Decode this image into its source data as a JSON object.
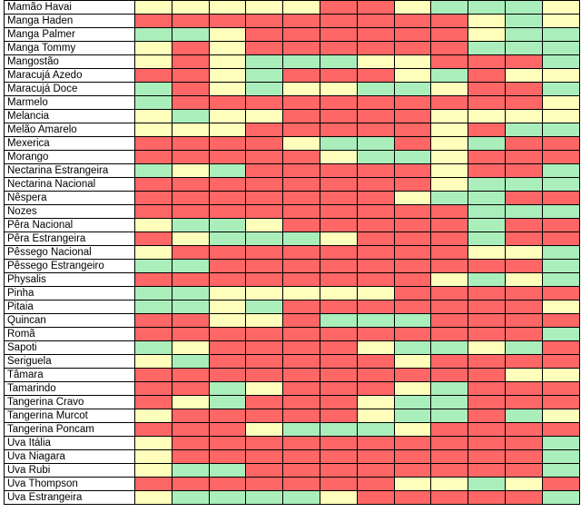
{
  "colors": {
    "R": "#ff6666",
    "G": "#aaeebb",
    "Y": "#ffffbb"
  },
  "rows": [
    {
      "name": "Mamão Havai",
      "cells": "YYYYYRRYGGGY"
    },
    {
      "name": "Manga Haden",
      "cells": "RRRRRRRRRYGY"
    },
    {
      "name": "Manga Palmer",
      "cells": "GGYRRRRRRYGG"
    },
    {
      "name": "Manga Tommy",
      "cells": "YRYRRRRRRGGG"
    },
    {
      "name": "Mangostão",
      "cells": "YRYGGGYYRRRG"
    },
    {
      "name": "Maracujá Azedo",
      "cells": "RRYGRRRYGRYY"
    },
    {
      "name": "Maracujá Doce",
      "cells": "GRYGYYGGYRRG"
    },
    {
      "name": "Marmelo",
      "cells": "GRRRRRRRRRRY"
    },
    {
      "name": "Melancia",
      "cells": "YGYYRRRRYYYY"
    },
    {
      "name": "Melão Amarelo",
      "cells": "YYYRRRRRYRGG"
    },
    {
      "name": "Mexerica",
      "cells": "RRRRYGGRYGRR"
    },
    {
      "name": "Morango",
      "cells": "RRRRRYGGYRRR"
    },
    {
      "name": "Nectarina Estrangeira",
      "cells": "GYGRRRRRYRRG"
    },
    {
      "name": "Nectarina Nacional",
      "cells": "RRRRRRRRYGGG"
    },
    {
      "name": "Nêspera",
      "cells": "RRRRRRRYGGRR"
    },
    {
      "name": "Nozes",
      "cells": "RRRRRRRRRGGG"
    },
    {
      "name": "Pêra Nacional",
      "cells": "YGGYRRRRRGRR"
    },
    {
      "name": "Pêra Estrangeira",
      "cells": "RYGGGYRRRGRR"
    },
    {
      "name": "Pêssego Nacional",
      "cells": "YRRRRRRRRYYG"
    },
    {
      "name": "Pêssego Estrangeiro",
      "cells": "GGRRRRRRRRRG"
    },
    {
      "name": "Physalis",
      "cells": "RRRRRRRRYGYG"
    },
    {
      "name": "Pinha",
      "cells": "GGYYYYYRRRRR"
    },
    {
      "name": "Pitaia",
      "cells": "GGYGRRRRRRRY"
    },
    {
      "name": "Quincan",
      "cells": "RRYYRGGGRRRR"
    },
    {
      "name": "Romã",
      "cells": "RRRRRRRRRRRG"
    },
    {
      "name": "Sapoti",
      "cells": "GYRRRRYGGYGR"
    },
    {
      "name": "Seriguela",
      "cells": "YGRRRRRYRRRR"
    },
    {
      "name": "Tâmara",
      "cells": "RRRRRRRRRRYY"
    },
    {
      "name": "Tamarindo",
      "cells": "RRGYRRRYGRRR"
    },
    {
      "name": "Tangerina Cravo",
      "cells": "RYGRRRYGGRRR"
    },
    {
      "name": "Tangerina Murcot",
      "cells": "YRRRRRYGGRGY"
    },
    {
      "name": "Tangerina Poncam",
      "cells": "RRRYGGGYRRRR"
    },
    {
      "name": "Uva Itália",
      "cells": "YRRRRRRRRRRG"
    },
    {
      "name": "Uva Niagara",
      "cells": "YRRRRRRRRRRG"
    },
    {
      "name": "Uva Rubi",
      "cells": "YGGRRRRRRRRG"
    },
    {
      "name": "Uva Thompson",
      "cells": "RRRRRRRYYGYR"
    },
    {
      "name": "Uva Estrangeira",
      "cells": "YGGGGYRRRRRG"
    }
  ]
}
